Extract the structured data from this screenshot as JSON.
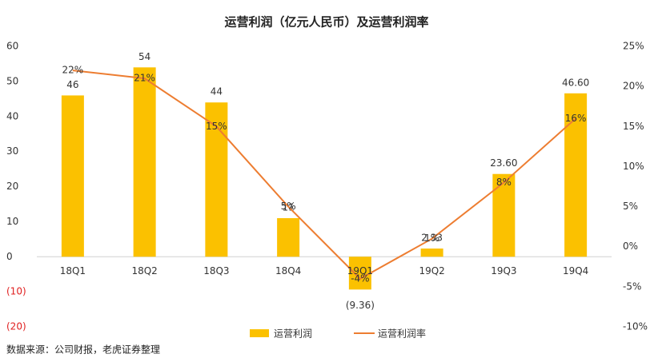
{
  "chart_data": {
    "type": "bar_line",
    "title": "运营利润（亿元人民币）及运营利润率",
    "source": "数据来源：公司财报，老虎证券整理",
    "categories": [
      "18Q1",
      "18Q2",
      "18Q3",
      "18Q4",
      "19Q1",
      "19Q2",
      "19Q3",
      "19Q4"
    ],
    "series": [
      {
        "name": "运营利润",
        "type": "bar",
        "color": "#fbc100",
        "values": [
          46,
          54,
          44,
          11,
          -9.36,
          2.33,
          23.6,
          46.6
        ],
        "value_labels": [
          "46",
          "54",
          "44",
          "11",
          "(9.36)",
          "2.33",
          "23.60",
          "46.60"
        ]
      },
      {
        "name": "运营利润率",
        "type": "line",
        "axis": "y2",
        "color": "#ed7d31",
        "values": [
          22,
          21,
          15,
          5,
          -4,
          1,
          8,
          16
        ],
        "value_labels": [
          "22%",
          "21%",
          "15%",
          "5%",
          "-4%",
          "1%",
          "8%",
          "16%"
        ]
      }
    ],
    "ylim": [
      -20,
      60
    ],
    "yticks": [
      {
        "value": -20,
        "label": "(20)"
      },
      {
        "value": -10,
        "label": "(10)"
      },
      0,
      10,
      20,
      30,
      40,
      50,
      60
    ],
    "y2lim": [
      -10,
      25
    ],
    "y2ticks": [
      {
        "value": -10,
        "label": "-10%"
      },
      {
        "value": -5,
        "label": "-5%"
      },
      {
        "value": 0,
        "label": "0%"
      },
      {
        "value": 5,
        "label": "5%"
      },
      {
        "value": 10,
        "label": "10%"
      },
      {
        "value": 15,
        "label": "15%"
      },
      {
        "value": 20,
        "label": "20%"
      },
      {
        "value": 25,
        "label": "25%"
      }
    ],
    "negative_tick_color": "#e02020",
    "legend": "bottom"
  }
}
